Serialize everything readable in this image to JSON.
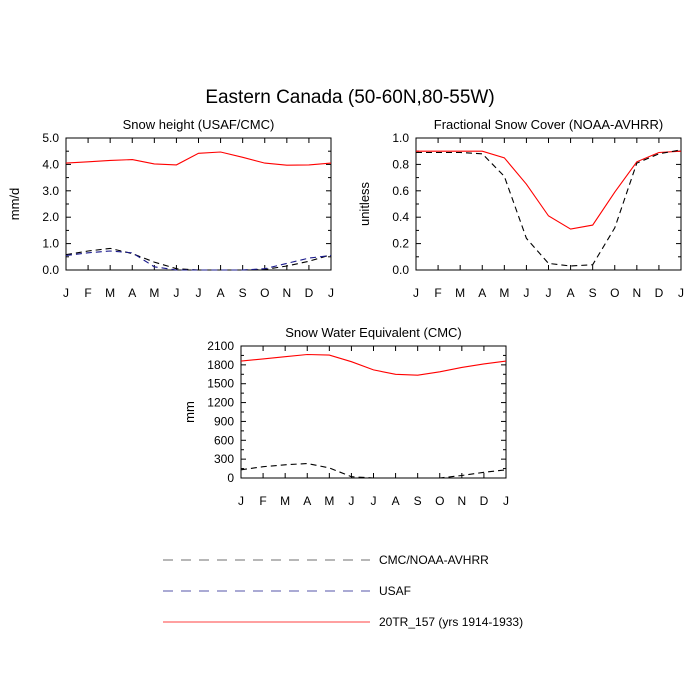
{
  "main_title": "Eastern Canada (50-60N,80-55W)",
  "legend": {
    "items": [
      {
        "label": "CMC/NOAA-AVHRR",
        "color": "#000000",
        "dash": "dashed",
        "opacity": 0.45
      },
      {
        "label": "USAF",
        "color": "#1a1a8c",
        "dash": "dashed",
        "opacity": 0.6
      },
      {
        "label": "20TR_157 (yrs 1914-1933)",
        "color": "#ff0000",
        "dash": "solid",
        "opacity": 0.6
      }
    ]
  },
  "chart_data": [
    {
      "type": "line",
      "title": "Snow height (USAF/CMC)",
      "ylabel": "mm/d",
      "xlabel": "",
      "categories": [
        "J",
        "F",
        "M",
        "A",
        "M",
        "J",
        "J",
        "A",
        "S",
        "O",
        "N",
        "D",
        "J"
      ],
      "ylim": [
        0,
        5
      ],
      "yticks": [
        0,
        1,
        2,
        3,
        4,
        5
      ],
      "ytick_labels": [
        "0.0",
        "1.0",
        "2.0",
        "3.0",
        "4.0",
        "5.0"
      ],
      "series": [
        {
          "name": "20TR_157 (yrs 1914-1933)",
          "color": "#ff0000",
          "dash": "solid",
          "values": [
            4.05,
            4.1,
            4.15,
            4.18,
            4.02,
            3.98,
            4.42,
            4.47,
            4.27,
            4.05,
            3.97,
            3.98,
            4.05
          ]
        },
        {
          "name": "CMC/NOAA-AVHRR",
          "color": "#000000",
          "dash": "dashed",
          "values": [
            0.58,
            0.72,
            0.82,
            0.62,
            0.3,
            0.05,
            0.0,
            0.0,
            0.0,
            0.02,
            0.15,
            0.33,
            0.58
          ]
        },
        {
          "name": "USAF",
          "color": "#1a1a8c",
          "dash": "dashed",
          "values": [
            0.55,
            0.65,
            0.72,
            0.65,
            0.12,
            0.0,
            0.0,
            0.0,
            0.0,
            0.05,
            0.25,
            0.45,
            0.55
          ]
        }
      ]
    },
    {
      "type": "line",
      "title": "Fractional Snow Cover (NOAA-AVHRR)",
      "ylabel": "unitless",
      "xlabel": "",
      "categories": [
        "J",
        "F",
        "M",
        "A",
        "M",
        "J",
        "J",
        "A",
        "S",
        "O",
        "N",
        "D",
        "J"
      ],
      "ylim": [
        0,
        1
      ],
      "yticks": [
        0,
        0.2,
        0.4,
        0.6,
        0.8,
        1.0
      ],
      "ytick_labels": [
        "0.0",
        "0.2",
        "0.4",
        "0.6",
        "0.8",
        "1.0"
      ],
      "series": [
        {
          "name": "20TR_157 (yrs 1914-1933)",
          "color": "#ff0000",
          "dash": "solid",
          "values": [
            0.9,
            0.9,
            0.9,
            0.9,
            0.85,
            0.65,
            0.41,
            0.31,
            0.34,
            0.59,
            0.82,
            0.89,
            0.9
          ]
        },
        {
          "name": "CMC/NOAA-AVHRR",
          "color": "#000000",
          "dash": "dashed",
          "values": [
            0.89,
            0.89,
            0.89,
            0.88,
            0.71,
            0.24,
            0.05,
            0.03,
            0.04,
            0.32,
            0.81,
            0.88,
            0.91
          ]
        }
      ]
    },
    {
      "type": "line",
      "title": "Snow Water Equivalent (CMC)",
      "ylabel": "mm",
      "xlabel": "",
      "categories": [
        "J",
        "F",
        "M",
        "A",
        "M",
        "J",
        "J",
        "A",
        "S",
        "O",
        "N",
        "D",
        "J"
      ],
      "ylim": [
        0,
        2100
      ],
      "yticks": [
        0,
        300,
        600,
        900,
        1200,
        1500,
        1800,
        2100
      ],
      "ytick_labels": [
        "0",
        "300",
        "600",
        "900",
        "1200",
        "1500",
        "1800",
        "2100"
      ],
      "series": [
        {
          "name": "20TR_157 (yrs 1914-1933)",
          "color": "#ff0000",
          "dash": "solid",
          "values": [
            1860,
            1895,
            1930,
            1965,
            1955,
            1850,
            1720,
            1650,
            1635,
            1690,
            1760,
            1815,
            1860
          ]
        },
        {
          "name": "CMC/NOAA-AVHRR",
          "color": "#000000",
          "dash": "dashed",
          "values": [
            130,
            180,
            210,
            230,
            160,
            20,
            0,
            0,
            0,
            0,
            40,
            90,
            130
          ]
        }
      ]
    }
  ]
}
